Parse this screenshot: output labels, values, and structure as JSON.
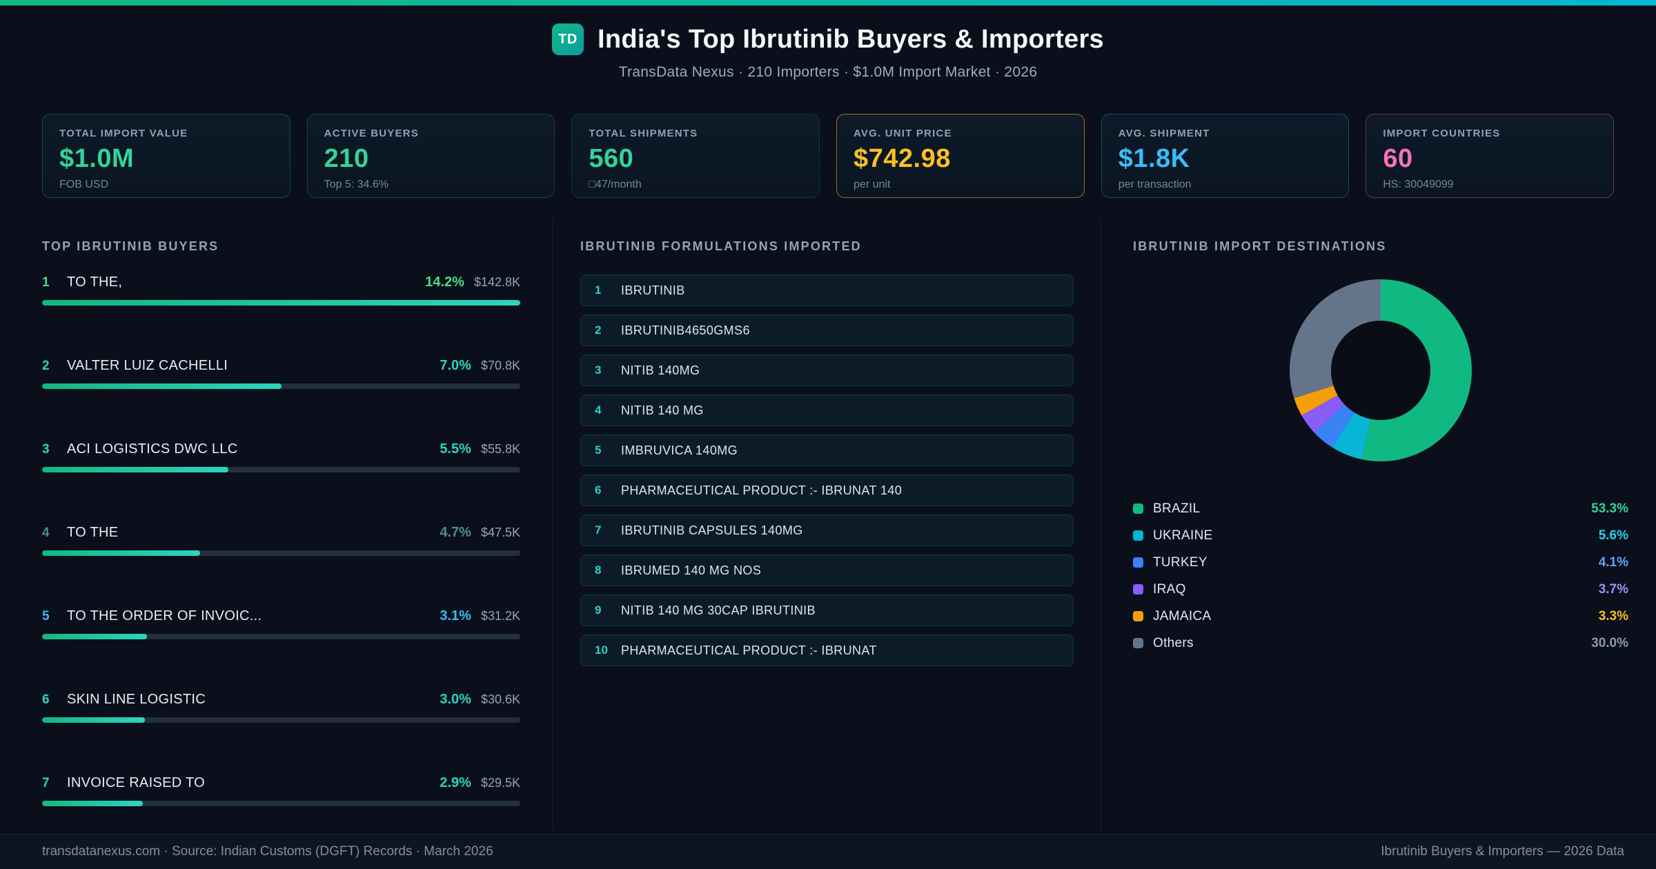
{
  "header": {
    "logo": "TD",
    "title": "India's Top Ibrutinib Buyers & Importers",
    "subtitle": "TransData Nexus · 210 Importers · $1.0M Import Market · 2026"
  },
  "stats": [
    {
      "label": "TOTAL IMPORT VALUE",
      "value": "$1.0M",
      "sub": "FOB USD",
      "color": "#34d399",
      "border": "rgba(52,211,153,0.28)"
    },
    {
      "label": "ACTIVE BUYERS",
      "value": "210",
      "sub": "Top 5: 34.6%",
      "color": "#34d399",
      "border": "rgba(52,211,153,0.22)"
    },
    {
      "label": "TOTAL SHIPMENTS",
      "value": "560",
      "sub": "□47/month",
      "color": "#34d399",
      "border": "rgba(56,189,248,0.18)"
    },
    {
      "label": "AVG. UNIT PRICE",
      "value": "$742.98",
      "sub": "per unit",
      "color": "#fbbf24",
      "border": "rgba(251,191,36,0.55)"
    },
    {
      "label": "AVG. SHIPMENT",
      "value": "$1.8K",
      "sub": "per transaction",
      "color": "#38bdf8",
      "border": "rgba(56,189,248,0.30)"
    },
    {
      "label": "IMPORT COUNTRIES",
      "value": "60",
      "sub": "HS: 30049099",
      "color": "#f472b6",
      "border": "rgba(244,114,182,0.35)"
    }
  ],
  "buyers": {
    "title": "TOP IBRUTINIB BUYERS",
    "items": [
      {
        "rank": "1",
        "name": "TO THE,",
        "pct": "14.2%",
        "value": "$142.8K",
        "bar": 100,
        "accent": "#4ade80"
      },
      {
        "rank": "2",
        "name": "VALTER LUIZ CACHELLI",
        "pct": "7.0%",
        "value": "$70.8K",
        "bar": 50,
        "accent": "#2dd4bf"
      },
      {
        "rank": "3",
        "name": "ACI LOGISTICS DWC LLC",
        "pct": "5.5%",
        "value": "$55.8K",
        "bar": 39,
        "accent": "#2dd4bf"
      },
      {
        "rank": "4",
        "name": "TO THE",
        "pct": "4.7%",
        "value": "$47.5K",
        "bar": 33,
        "accent": "#4b8f86"
      },
      {
        "rank": "5",
        "name": "TO THE ORDER OF INVOIC...",
        "pct": "3.1%",
        "value": "$31.2K",
        "bar": 22,
        "accent": "#38bdf8"
      },
      {
        "rank": "6",
        "name": "SKIN LINE LOGISTIC",
        "pct": "3.0%",
        "value": "$30.6K",
        "bar": 21.5,
        "accent": "#2dd4bf"
      },
      {
        "rank": "7",
        "name": "INVOICE RAISED TO",
        "pct": "2.9%",
        "value": "$29.5K",
        "bar": 21,
        "accent": "#2dd4bf"
      }
    ]
  },
  "formulations": {
    "title": "IBRUTINIB FORMULATIONS IMPORTED",
    "items": [
      {
        "n": "1",
        "name": "IBRUTINIB"
      },
      {
        "n": "2",
        "name": "IBRUTINIB4650GMS6"
      },
      {
        "n": "3",
        "name": "NITIB 140MG"
      },
      {
        "n": "4",
        "name": "NITIB 140 MG"
      },
      {
        "n": "5",
        "name": "IMBRUVICA 140MG"
      },
      {
        "n": "6",
        "name": "PHARMACEUTICAL PRODUCT :- IBRUNAT 140"
      },
      {
        "n": "7",
        "name": "IBRUTINIB CAPSULES 140MG"
      },
      {
        "n": "8",
        "name": "IBRUMED 140 MG NOS"
      },
      {
        "n": "9",
        "name": "NITIB 140 MG 30CAP IBRUTINIB"
      },
      {
        "n": "10",
        "name": "PHARMACEUTICAL PRODUCT :- IBRUNAT"
      }
    ]
  },
  "destinations": {
    "title": "IBRUTINIB IMPORT DESTINATIONS",
    "items": [
      {
        "label": "BRAZIL",
        "pct": "53.3%",
        "swatch": "#10b981",
        "pct_color": "#34d399"
      },
      {
        "label": "UKRAINE",
        "pct": "5.6%",
        "swatch": "#06b6d4",
        "pct_color": "#22d3ee"
      },
      {
        "label": "TURKEY",
        "pct": "4.1%",
        "swatch": "#3b82f6",
        "pct_color": "#60a5fa"
      },
      {
        "label": "IRAQ",
        "pct": "3.7%",
        "swatch": "#8b5cf6",
        "pct_color": "#a78bfa"
      },
      {
        "label": "JAMAICA",
        "pct": "3.3%",
        "swatch": "#f59e0b",
        "pct_color": "#fbbf24"
      },
      {
        "label": "Others",
        "pct": "30.0%",
        "swatch": "#64748b",
        "pct_color": "#8b9bab"
      }
    ]
  },
  "chart_data": [
    {
      "type": "pie",
      "donut": true,
      "title": "IBRUTINIB IMPORT DESTINATIONS",
      "labels": [
        "BRAZIL",
        "UKRAINE",
        "TURKEY",
        "IRAQ",
        "JAMAICA",
        "Others"
      ],
      "values": [
        53.3,
        5.6,
        4.1,
        3.7,
        3.3,
        30.0
      ],
      "colors": [
        "#10b981",
        "#06b6d4",
        "#3b82f6",
        "#8b5cf6",
        "#f59e0b",
        "#64748b"
      ],
      "hole_color": "#0a0d16",
      "start_angle_deg": 0,
      "legend_position": "below"
    },
    {
      "type": "bar",
      "orientation": "horizontal",
      "title": "TOP IBRUTINIB BUYERS",
      "categories": [
        "TO THE,",
        "VALTER LUIZ CACHELLI",
        "ACI LOGISTICS DWC LLC",
        "TO THE",
        "TO THE ORDER OF INVOIC...",
        "SKIN LINE LOGISTIC",
        "INVOICE RAISED TO"
      ],
      "values": [
        14.2,
        7.0,
        5.5,
        4.7,
        3.1,
        3.0,
        2.9
      ],
      "value_labels": [
        "$142.8K",
        "$70.8K",
        "$55.8K",
        "$47.5K",
        "$31.2K",
        "$30.6K",
        "$29.5K"
      ],
      "unit": "percent share of import value",
      "xlim": [
        0,
        14.2
      ]
    }
  ],
  "footer": {
    "left": "transdatanexus.com · Source: Indian Customs (DGFT) Records · March 2026",
    "right": "Ibrutinib Buyers & Importers — 2026 Data"
  }
}
